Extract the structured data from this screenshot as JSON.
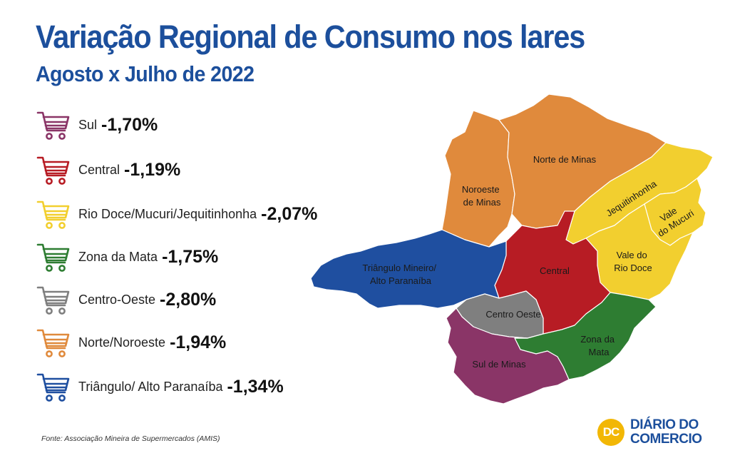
{
  "title": "Variação Regional de Consumo nos lares",
  "subtitle": "Agosto x Julho de 2022",
  "legend": [
    {
      "name": "Sul",
      "value": "-1,70%",
      "color": "#8a3567",
      "icon": "shopping-cart-icon"
    },
    {
      "name": "Central",
      "value": "-1,19%",
      "color": "#b71c24",
      "icon": "shopping-cart-icon"
    },
    {
      "name": "Rio Doce/Mucuri/Jequitinhonha",
      "value": "-2,07%",
      "color": "#f2cf2f",
      "icon": "shopping-cart-icon"
    },
    {
      "name": "Zona da Mata",
      "value": "-1,75%",
      "color": "#2e7d32",
      "icon": "shopping-cart-icon"
    },
    {
      "name": "Centro-Oeste",
      "value": "-2,80%",
      "color": "#7f7f7f",
      "icon": "shopping-cart-icon"
    },
    {
      "name": "Norte/Noroeste",
      "value": "-1,94%",
      "color": "#e08a3c",
      "icon": "shopping-cart-icon"
    },
    {
      "name": "Triângulo/ Alto Paranaíba",
      "value": "-1,34%",
      "color": "#1f4fa0",
      "icon": "shopping-cart-icon"
    }
  ],
  "map": {
    "regions": [
      {
        "id": "noroeste",
        "label_lines": [
          "Noroeste",
          "de Minas"
        ],
        "color": "#e08a3c"
      },
      {
        "id": "norte",
        "label_lines": [
          "Norte de Minas"
        ],
        "color": "#e08a3c"
      },
      {
        "id": "jequitinhonha",
        "label_lines": [
          "Jequitinhonha"
        ],
        "color": "#f2cf2f"
      },
      {
        "id": "mucuri",
        "label_lines": [
          "Vale",
          "do Mucuri"
        ],
        "color": "#f2cf2f"
      },
      {
        "id": "rio-doce",
        "label_lines": [
          "Vale do",
          "Rio Doce"
        ],
        "color": "#f2cf2f"
      },
      {
        "id": "central",
        "label_lines": [
          "Central"
        ],
        "color": "#b71c24"
      },
      {
        "id": "triangulo",
        "label_lines": [
          "Triângulo Mineiro/",
          "Alto Paranaíba"
        ],
        "color": "#1f4fa0"
      },
      {
        "id": "centro-oeste",
        "label_lines": [
          "Centro Oeste"
        ],
        "color": "#7f7f7f"
      },
      {
        "id": "zona-mata",
        "label_lines": [
          "Zona da",
          "Mata"
        ],
        "color": "#2e7d32"
      },
      {
        "id": "sul",
        "label_lines": [
          "Sul de Minas"
        ],
        "color": "#8a3567"
      }
    ]
  },
  "source": "Fonte: Associação Mineira de Supermercados (AMIS)",
  "logo": {
    "mark": "DC",
    "line1": "DIÁRIO DO",
    "line2": "COMERCIO",
    "mark_color": "#f2b705",
    "text_color": "#1c4f9c"
  }
}
